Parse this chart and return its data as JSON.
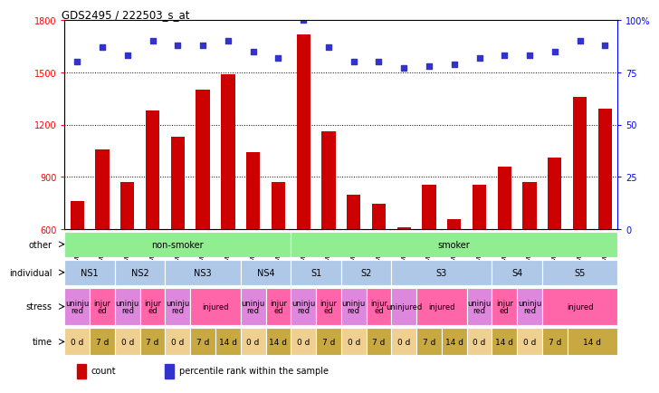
{
  "title": "GDS2495 / 222503_s_at",
  "samples": [
    "GSM122528",
    "GSM122531",
    "GSM122539",
    "GSM122540",
    "GSM122541",
    "GSM122542",
    "GSM122543",
    "GSM122544",
    "GSM122546",
    "GSM122527",
    "GSM122529",
    "GSM122530",
    "GSM122532",
    "GSM122533",
    "GSM122535",
    "GSM122536",
    "GSM122538",
    "GSM122534",
    "GSM122537",
    "GSM122545",
    "GSM122547",
    "GSM122548"
  ],
  "counts": [
    760,
    1060,
    870,
    1280,
    1130,
    1400,
    1490,
    1040,
    870,
    1720,
    1160,
    800,
    745,
    610,
    855,
    660,
    855,
    960,
    870,
    1010,
    1360,
    1290
  ],
  "percentiles": [
    80,
    87,
    83,
    90,
    88,
    88,
    90,
    85,
    82,
    100,
    87,
    80,
    80,
    77,
    78,
    79,
    82,
    83,
    83,
    85,
    90,
    88
  ],
  "ylim_left": [
    600,
    1800
  ],
  "ylim_right": [
    0,
    100
  ],
  "yticks_left": [
    600,
    900,
    1200,
    1500,
    1800
  ],
  "yticks_right": [
    0,
    25,
    50,
    75,
    100
  ],
  "ytick_labels_right": [
    "0",
    "25",
    "50",
    "75",
    "100%"
  ],
  "bar_color": "#cc0000",
  "dot_color": "#3333cc",
  "other_row": {
    "label": "other",
    "segments": [
      {
        "text": "non-smoker",
        "start": 0,
        "end": 9,
        "color": "#90ee90"
      },
      {
        "text": "smoker",
        "start": 9,
        "end": 22,
        "color": "#90ee90"
      }
    ]
  },
  "individual_row": {
    "label": "individual",
    "segments": [
      {
        "text": "NS1",
        "start": 0,
        "end": 2,
        "color": "#b0c8e8"
      },
      {
        "text": "NS2",
        "start": 2,
        "end": 4,
        "color": "#b0c8e8"
      },
      {
        "text": "NS3",
        "start": 4,
        "end": 7,
        "color": "#b0c8e8"
      },
      {
        "text": "NS4",
        "start": 7,
        "end": 9,
        "color": "#b0c8e8"
      },
      {
        "text": "S1",
        "start": 9,
        "end": 11,
        "color": "#b0c8e8"
      },
      {
        "text": "S2",
        "start": 11,
        "end": 13,
        "color": "#b0c8e8"
      },
      {
        "text": "S3",
        "start": 13,
        "end": 17,
        "color": "#b0c8e8"
      },
      {
        "text": "S4",
        "start": 17,
        "end": 19,
        "color": "#b0c8e8"
      },
      {
        "text": "S5",
        "start": 19,
        "end": 22,
        "color": "#b0c8e8"
      }
    ]
  },
  "stress_row": {
    "label": "stress",
    "segments": [
      {
        "text": "uninju\nred",
        "start": 0,
        "end": 1,
        "color": "#dd88dd"
      },
      {
        "text": "injur\ned",
        "start": 1,
        "end": 2,
        "color": "#ff66aa"
      },
      {
        "text": "uninju\nred",
        "start": 2,
        "end": 3,
        "color": "#dd88dd"
      },
      {
        "text": "injur\ned",
        "start": 3,
        "end": 4,
        "color": "#ff66aa"
      },
      {
        "text": "uninju\nred",
        "start": 4,
        "end": 5,
        "color": "#dd88dd"
      },
      {
        "text": "injured",
        "start": 5,
        "end": 7,
        "color": "#ff66aa"
      },
      {
        "text": "uninju\nred",
        "start": 7,
        "end": 8,
        "color": "#dd88dd"
      },
      {
        "text": "injur\ned",
        "start": 8,
        "end": 9,
        "color": "#ff66aa"
      },
      {
        "text": "uninju\nred",
        "start": 9,
        "end": 10,
        "color": "#dd88dd"
      },
      {
        "text": "injur\ned",
        "start": 10,
        "end": 11,
        "color": "#ff66aa"
      },
      {
        "text": "uninju\nred",
        "start": 11,
        "end": 12,
        "color": "#dd88dd"
      },
      {
        "text": "injur\ned",
        "start": 12,
        "end": 13,
        "color": "#ff66aa"
      },
      {
        "text": "uninjured",
        "start": 13,
        "end": 14,
        "color": "#dd88dd"
      },
      {
        "text": "injured",
        "start": 14,
        "end": 16,
        "color": "#ff66aa"
      },
      {
        "text": "uninju\nred",
        "start": 16,
        "end": 17,
        "color": "#dd88dd"
      },
      {
        "text": "injur\ned",
        "start": 17,
        "end": 18,
        "color": "#ff66aa"
      },
      {
        "text": "uninju\nred",
        "start": 18,
        "end": 19,
        "color": "#dd88dd"
      },
      {
        "text": "injured",
        "start": 19,
        "end": 22,
        "color": "#ff66aa"
      }
    ]
  },
  "time_row": {
    "label": "time",
    "segments": [
      {
        "text": "0 d",
        "start": 0,
        "end": 1,
        "color": "#f0d090"
      },
      {
        "text": "7 d",
        "start": 1,
        "end": 2,
        "color": "#c8a840"
      },
      {
        "text": "0 d",
        "start": 2,
        "end": 3,
        "color": "#f0d090"
      },
      {
        "text": "7 d",
        "start": 3,
        "end": 4,
        "color": "#c8a840"
      },
      {
        "text": "0 d",
        "start": 4,
        "end": 5,
        "color": "#f0d090"
      },
      {
        "text": "7 d",
        "start": 5,
        "end": 6,
        "color": "#c8a840"
      },
      {
        "text": "14 d",
        "start": 6,
        "end": 7,
        "color": "#c8a840"
      },
      {
        "text": "0 d",
        "start": 7,
        "end": 8,
        "color": "#f0d090"
      },
      {
        "text": "14 d",
        "start": 8,
        "end": 9,
        "color": "#c8a840"
      },
      {
        "text": "0 d",
        "start": 9,
        "end": 10,
        "color": "#f0d090"
      },
      {
        "text": "7 d",
        "start": 10,
        "end": 11,
        "color": "#c8a840"
      },
      {
        "text": "0 d",
        "start": 11,
        "end": 12,
        "color": "#f0d090"
      },
      {
        "text": "7 d",
        "start": 12,
        "end": 13,
        "color": "#c8a840"
      },
      {
        "text": "0 d",
        "start": 13,
        "end": 14,
        "color": "#f0d090"
      },
      {
        "text": "7 d",
        "start": 14,
        "end": 15,
        "color": "#c8a840"
      },
      {
        "text": "14 d",
        "start": 15,
        "end": 16,
        "color": "#c8a840"
      },
      {
        "text": "0 d",
        "start": 16,
        "end": 17,
        "color": "#f0d090"
      },
      {
        "text": "14 d",
        "start": 17,
        "end": 18,
        "color": "#c8a840"
      },
      {
        "text": "0 d",
        "start": 18,
        "end": 19,
        "color": "#f0d090"
      },
      {
        "text": "7 d",
        "start": 19,
        "end": 20,
        "color": "#c8a840"
      },
      {
        "text": "14 d",
        "start": 20,
        "end": 22,
        "color": "#c8a840"
      }
    ]
  }
}
